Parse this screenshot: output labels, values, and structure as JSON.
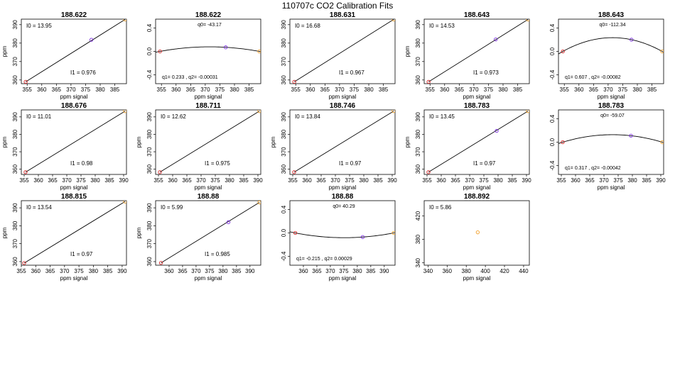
{
  "figure": {
    "title": "110707c   CO2 Calibration Fits"
  },
  "chart_data": [
    {
      "type": "scatter",
      "title": "188.622",
      "xlabel": "ppm signal",
      "ylabel": "ppm",
      "fit": "linear",
      "xlim": [
        353,
        389
      ],
      "ylim": [
        358,
        393
      ],
      "xticks": [
        355,
        360,
        365,
        370,
        375,
        380,
        385
      ],
      "yticks": [
        360,
        370,
        380,
        390
      ],
      "points": [
        {
          "x": 354.5,
          "y": 359.0,
          "color": "#d62728"
        },
        {
          "x": 377.0,
          "y": 381.8,
          "color": "#7b2fe0"
        },
        {
          "x": 388.5,
          "y": 392.8,
          "color": "#f2a02a"
        }
      ],
      "annotations": [
        "I0 =  13.95",
        "I1 =  0.976"
      ]
    },
    {
      "type": "scatter",
      "title": "188.622",
      "xlabel": "ppm signal",
      "ylabel": "",
      "fit": "quadratic",
      "xlim": [
        353,
        389
      ],
      "ylim": [
        -0.55,
        0.55
      ],
      "xticks": [
        355,
        360,
        365,
        370,
        375,
        380,
        385
      ],
      "yticks": [
        -0.4,
        0.0,
        0.4
      ],
      "points": [
        {
          "x": 354.5,
          "y": 0.0,
          "color": "#d62728"
        },
        {
          "x": 377.0,
          "y": 0.07,
          "color": "#7b2fe0"
        },
        {
          "x": 388.5,
          "y": 0.0,
          "color": "#f2a02a"
        }
      ],
      "annotations": [
        "q0= -43.17",
        "q1= 0.233 , q2= -0.00031"
      ]
    },
    {
      "type": "scatter",
      "title": "188.631",
      "xlabel": "ppm signal",
      "ylabel": "",
      "fit": "linear",
      "xlim": [
        353,
        389
      ],
      "ylim": [
        358,
        393
      ],
      "xticks": [
        355,
        360,
        365,
        370,
        375,
        380,
        385
      ],
      "yticks": [
        360,
        370,
        380,
        390
      ],
      "points": [
        {
          "x": 354.5,
          "y": 359.0,
          "color": "#d62728"
        },
        {
          "x": 388.5,
          "y": 392.8,
          "color": "#f2a02a"
        }
      ],
      "annotations": [
        "I0 =  16.68",
        "I1 =  0.967"
      ]
    },
    {
      "type": "scatter",
      "title": "188.643",
      "xlabel": "ppm signal",
      "ylabel": "ppm",
      "fit": "linear",
      "xlim": [
        353,
        389
      ],
      "ylim": [
        358,
        393
      ],
      "xticks": [
        355,
        360,
        365,
        370,
        375,
        380,
        385
      ],
      "yticks": [
        360,
        370,
        380,
        390
      ],
      "points": [
        {
          "x": 354.5,
          "y": 359.0,
          "color": "#d62728"
        },
        {
          "x": 377.5,
          "y": 382.0,
          "color": "#7b2fe0"
        },
        {
          "x": 388.5,
          "y": 392.8,
          "color": "#f2a02a"
        }
      ],
      "annotations": [
        "I0 =  14.53",
        "I1 =  0.973"
      ]
    },
    {
      "type": "scatter",
      "title": "188.643",
      "xlabel": "ppm signal",
      "ylabel": "",
      "fit": "quadratic",
      "xlim": [
        353,
        389
      ],
      "ylim": [
        -0.55,
        0.55
      ],
      "xticks": [
        355,
        360,
        365,
        370,
        375,
        380,
        385
      ],
      "yticks": [
        -0.4,
        0.0,
        0.4
      ],
      "points": [
        {
          "x": 354.5,
          "y": 0.0,
          "color": "#d62728"
        },
        {
          "x": 378.0,
          "y": 0.2,
          "color": "#7b2fe0"
        },
        {
          "x": 388.5,
          "y": 0.0,
          "color": "#f2a02a"
        }
      ],
      "annotations": [
        "q0= -112.34",
        "q1= 0.607 , q2= -0.00082"
      ]
    },
    {
      "type": "scatter",
      "title": "188.676",
      "xlabel": "ppm signal",
      "ylabel": "ppm",
      "fit": "linear",
      "xlim": [
        354,
        391
      ],
      "ylim": [
        357,
        394
      ],
      "xticks": [
        355,
        360,
        365,
        370,
        375,
        380,
        385,
        390
      ],
      "yticks": [
        360,
        370,
        380,
        390
      ],
      "points": [
        {
          "x": 355.5,
          "y": 358.3,
          "color": "#d62728"
        },
        {
          "x": 390.5,
          "y": 393.3,
          "color": "#f2a02a"
        }
      ],
      "annotations": [
        "I0 =  11.01",
        "I1 =  0.98"
      ]
    },
    {
      "type": "scatter",
      "title": "188.711",
      "xlabel": "ppm signal",
      "ylabel": "ppm",
      "fit": "linear",
      "xlim": [
        354,
        391
      ],
      "ylim": [
        357,
        394
      ],
      "xticks": [
        355,
        360,
        365,
        370,
        375,
        380,
        385,
        390
      ],
      "yticks": [
        360,
        370,
        380,
        390
      ],
      "points": [
        {
          "x": 355.5,
          "y": 358.3,
          "color": "#d62728"
        },
        {
          "x": 390.5,
          "y": 393.3,
          "color": "#f2a02a"
        }
      ],
      "annotations": [
        "I0 =  12.62",
        "I1 =  0.975"
      ]
    },
    {
      "type": "scatter",
      "title": "188.746",
      "xlabel": "ppm signal",
      "ylabel": "ppm",
      "fit": "linear",
      "xlim": [
        354,
        391
      ],
      "ylim": [
        357,
        394
      ],
      "xticks": [
        355,
        360,
        365,
        370,
        375,
        380,
        385,
        390
      ],
      "yticks": [
        360,
        370,
        380,
        390
      ],
      "points": [
        {
          "x": 355.5,
          "y": 358.3,
          "color": "#d62728"
        },
        {
          "x": 390.5,
          "y": 393.3,
          "color": "#f2a02a"
        }
      ],
      "annotations": [
        "I0 =  13.84",
        "I1 =  0.97"
      ]
    },
    {
      "type": "scatter",
      "title": "188.783",
      "xlabel": "ppm signal",
      "ylabel": "ppm",
      "fit": "linear",
      "xlim": [
        354,
        391
      ],
      "ylim": [
        357,
        394
      ],
      "xticks": [
        355,
        360,
        365,
        370,
        375,
        380,
        385,
        390
      ],
      "yticks": [
        360,
        370,
        380,
        390
      ],
      "points": [
        {
          "x": 355.5,
          "y": 358.3,
          "color": "#d62728"
        },
        {
          "x": 379.5,
          "y": 382.0,
          "color": "#7b2fe0"
        },
        {
          "x": 390.5,
          "y": 393.3,
          "color": "#f2a02a"
        }
      ],
      "annotations": [
        "I0 =  13.45",
        "I1 =  0.97"
      ]
    },
    {
      "type": "scatter",
      "title": "188.783",
      "xlabel": "ppm signal",
      "ylabel": "",
      "fit": "quadratic",
      "xlim": [
        354,
        391
      ],
      "ylim": [
        -0.55,
        0.55
      ],
      "xticks": [
        355,
        360,
        365,
        370,
        375,
        380,
        385,
        390
      ],
      "yticks": [
        -0.4,
        0.0,
        0.4
      ],
      "points": [
        {
          "x": 355.5,
          "y": 0.0,
          "color": "#d62728"
        },
        {
          "x": 379.5,
          "y": 0.11,
          "color": "#7b2fe0"
        },
        {
          "x": 390.5,
          "y": 0.0,
          "color": "#f2a02a"
        }
      ],
      "annotations": [
        "q0= -59.07",
        "q1= 0.317 , q2= -0.00042"
      ]
    },
    {
      "type": "scatter",
      "title": "188.815",
      "xlabel": "ppm signal",
      "ylabel": "ppm",
      "fit": "linear",
      "xlim": [
        355,
        391.5
      ],
      "ylim": [
        358,
        394
      ],
      "xticks": [
        355,
        360,
        365,
        370,
        375,
        380,
        385,
        390
      ],
      "yticks": [
        360,
        370,
        380,
        390
      ],
      "points": [
        {
          "x": 356.0,
          "y": 359.2,
          "color": "#d62728"
        },
        {
          "x": 391.0,
          "y": 393.5,
          "color": "#f2a02a"
        }
      ],
      "annotations": [
        "I0 =  13.54",
        "I1 =  0.97"
      ]
    },
    {
      "type": "scatter",
      "title": "188.88",
      "xlabel": "ppm signal",
      "ylabel": "ppm",
      "fit": "linear",
      "xlim": [
        355,
        394
      ],
      "ylim": [
        358,
        394
      ],
      "xticks": [
        360,
        365,
        370,
        375,
        380,
        385,
        390
      ],
      "yticks": [
        360,
        370,
        380,
        390
      ],
      "points": [
        {
          "x": 357.0,
          "y": 359.3,
          "color": "#d62728"
        },
        {
          "x": 382.0,
          "y": 382.0,
          "color": "#7b2fe0"
        },
        {
          "x": 393.5,
          "y": 393.0,
          "color": "#f2a02a"
        }
      ],
      "annotations": [
        "I0 =  5.99",
        "I1 =  0.985"
      ]
    },
    {
      "type": "scatter",
      "title": "188.88",
      "xlabel": "ppm signal",
      "ylabel": "",
      "fit": "quadratic",
      "xlim": [
        355,
        394
      ],
      "ylim": [
        -0.55,
        0.55
      ],
      "xticks": [
        360,
        365,
        370,
        375,
        380,
        385,
        390
      ],
      "yticks": [
        -0.4,
        0.0,
        0.4
      ],
      "points": [
        {
          "x": 357.0,
          "y": 0.0,
          "color": "#d62728"
        },
        {
          "x": 382.0,
          "y": -0.07,
          "color": "#7b2fe0"
        },
        {
          "x": 393.5,
          "y": 0.0,
          "color": "#f2a02a"
        }
      ],
      "annotations": [
        "q0= 40.29",
        "q1= -0.215 , q2= 0.00029"
      ]
    },
    {
      "type": "scatter",
      "title": "188.892",
      "xlabel": "ppm signal",
      "ylabel": "",
      "fit": "none",
      "xlim": [
        336,
        446
      ],
      "ylim": [
        336,
        446
      ],
      "xticks": [
        340,
        360,
        380,
        400,
        420,
        440
      ],
      "yticks": [
        340,
        380,
        420
      ],
      "points": [
        {
          "x": 392.0,
          "y": 392.0,
          "color": "#f2a02a"
        }
      ],
      "annotations": [
        "I0 =  5.86"
      ]
    }
  ]
}
